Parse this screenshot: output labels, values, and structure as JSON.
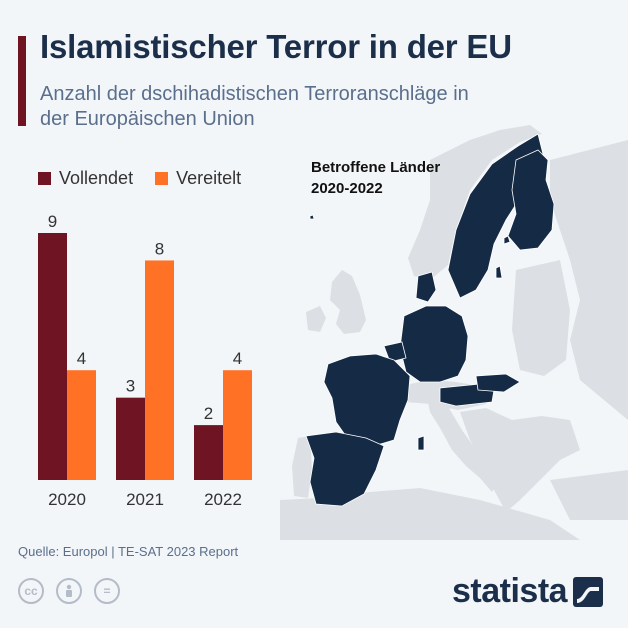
{
  "title": "Islamistischer Terror in der EU",
  "subtitle": "Anzahl der dschihadistischen Terroranschläge in der Europäischen Union",
  "legend": [
    {
      "label": "Vollendet",
      "color": "#6e1423"
    },
    {
      "label": "Vereitelt",
      "color": "#ff7124"
    }
  ],
  "map": {
    "title_line1": "Betroffene Länder",
    "title_line2": "2020-2022",
    "highlight_color": "#152a45",
    "base_color": "#dcdfe3"
  },
  "chart_data": {
    "type": "bar",
    "categories": [
      "2020",
      "2021",
      "2022"
    ],
    "series": [
      {
        "name": "Vollendet",
        "values": [
          9,
          3,
          2
        ],
        "color": "#6e1423"
      },
      {
        "name": "Vereitelt",
        "values": [
          4,
          8,
          4
        ],
        "color": "#ff7124"
      }
    ],
    "ylim": [
      0,
      9
    ],
    "grid": false,
    "legend_position": "top-left"
  },
  "source": "Quelle: Europol | TE-SAT 2023 Report",
  "brand": "statista",
  "cc_icons": [
    "cc-icon",
    "person-icon",
    "equals-icon"
  ]
}
